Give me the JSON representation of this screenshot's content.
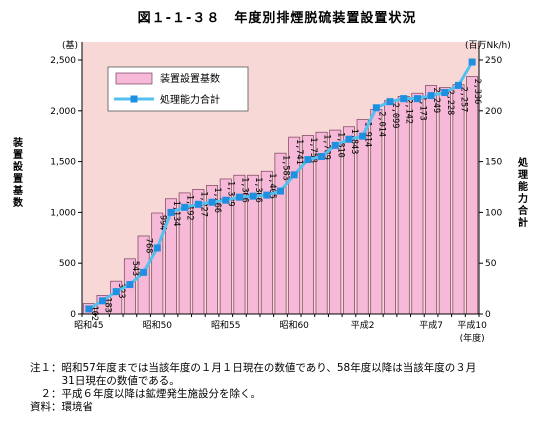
{
  "title": "図１-１-３８　年度別排煙脱硫装置設置状況",
  "notes": [
    "注１：昭和57年度までは当該年度の１月１日現在の数値であり、58年度以降は当該年度の３月",
    "　　　31日現在の数値である。",
    "　２：平成６年度以降は鉱煙発生施設分を除く。",
    "資料：環境省"
  ],
  "colors": {
    "plot_bg": "#f7d8d6",
    "bar_fill": "#f6b9d8",
    "bar_stroke": "#7a3f5c",
    "line": "#55c0ee",
    "marker": "#1f8fe0"
  },
  "chart_data": {
    "type": "bar+line",
    "x": [
      "昭和45",
      "昭和46",
      "昭和47",
      "昭和48",
      "昭和49",
      "昭和50",
      "昭和51",
      "昭和52",
      "昭和53",
      "昭和54",
      "昭和55",
      "昭和56",
      "昭和57",
      "昭和58",
      "昭和59",
      "昭和60",
      "昭和61",
      "昭和62",
      "昭和63",
      "平成元",
      "平成2",
      "平成3",
      "平成4",
      "平成5",
      "平成6",
      "平成7",
      "平成8",
      "平成9",
      "平成10"
    ],
    "x_tick_labels": [
      {
        "index": 0,
        "label": "昭和45"
      },
      {
        "index": 5,
        "label": "昭和50"
      },
      {
        "index": 10,
        "label": "昭和55"
      },
      {
        "index": 15,
        "label": "昭和60"
      },
      {
        "index": 20,
        "label": "平成2"
      },
      {
        "index": 25,
        "label": "平成7"
      },
      {
        "index": 28,
        "label": "平成10"
      }
    ],
    "x_unit_label": "(年度)",
    "series": [
      {
        "name": "装置設置基数",
        "kind": "bar",
        "axis": "left",
        "values": [
          102,
          183,
          323,
          543,
          768,
          994,
          1134,
          1192,
          1227,
          1266,
          1329,
          1366,
          1366,
          1405,
          1583,
          1741,
          1758,
          1789,
          1810,
          1843,
          1914,
          2014,
          2099,
          2142,
          2173,
          2249,
          2228,
          2257,
          2336
        ],
        "labels": [
          "102",
          "183",
          "323",
          "543",
          "768",
          "994",
          "1,134",
          "1,192",
          "1,227",
          "1,266",
          "1,329",
          "1,366",
          "1,366",
          "1,405",
          "1,583",
          "1,741",
          "1,758",
          "1,789",
          "1,810",
          "1,843",
          "1,914",
          "2,014",
          "2,099",
          "2,142",
          "2,173",
          "2,249",
          "2,228",
          "2,257",
          "2,336"
        ]
      },
      {
        "name": "処理能力合計",
        "kind": "line",
        "axis": "right",
        "values": [
          5,
          13,
          22,
          29,
          41,
          65,
          100,
          105,
          108,
          110,
          112,
          115,
          116,
          117,
          121,
          137,
          152,
          155,
          166,
          172,
          175,
          203,
          209,
          212,
          212,
          215,
          218,
          225,
          248
        ]
      }
    ],
    "y_left": {
      "label": "装置設置基数",
      "unit": "(基)",
      "min": 0,
      "max": 2500,
      "ticks": [
        0,
        500,
        1000,
        1500,
        2000,
        2500
      ],
      "tick_labels": [
        "0",
        "500",
        "1,000",
        "1,500",
        "2,000",
        "2,500"
      ]
    },
    "y_right": {
      "label": "処理能力合計",
      "unit": "(百万Nk/h)",
      "min": 0,
      "max": 250,
      "ticks": [
        0,
        50,
        100,
        150,
        200,
        250
      ],
      "tick_labels": [
        "0",
        "50",
        "100",
        "150",
        "200",
        "250"
      ]
    },
    "legend_position": "top-left",
    "grid": false
  }
}
